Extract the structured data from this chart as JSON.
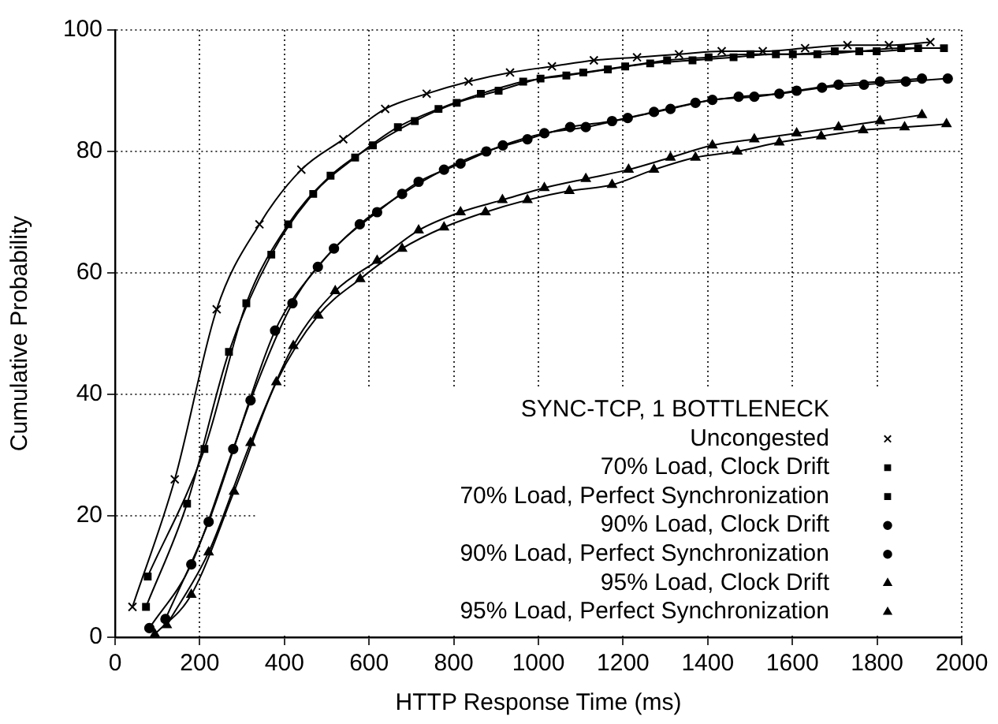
{
  "chart_data": {
    "type": "line",
    "legend_title": "SYNC-TCP, 1 BOTTLENECK",
    "xlabel": "HTTP Response Time (ms)",
    "ylabel": "Cumulative Probability",
    "xlim": [
      0,
      2000
    ],
    "xticks": [
      0,
      200,
      400,
      600,
      800,
      1000,
      1200,
      1400,
      1600,
      1800,
      2000
    ],
    "ylim": [
      0,
      100
    ],
    "yticks": [
      0,
      20,
      40,
      60,
      80,
      100
    ],
    "grid": true,
    "legend": "bottom right",
    "line_style": "solid",
    "series": [
      {
        "name": "Uncongested",
        "color": "#000000",
        "marker": "cross",
        "x": [
          41,
          141,
          240,
          341,
          440,
          539,
          638,
          736,
          835,
          933,
          1032,
          1131,
          1233,
          1332,
          1433,
          1530,
          1630,
          1730,
          1828,
          1926
        ],
        "values": [
          5,
          26,
          54,
          68,
          77,
          82,
          87,
          89.5,
          91.5,
          93,
          94,
          95,
          95.5,
          96,
          96.5,
          96.5,
          97,
          97.5,
          97.5,
          98
        ]
      },
      {
        "name": "70% Load, Clock Drift",
        "color": "#000000",
        "marker": "square",
        "x": [
          73,
          170,
          269,
          369,
          468,
          567,
          668,
          764,
          864,
          964,
          1066,
          1164,
          1264,
          1364,
          1461,
          1561,
          1659,
          1758,
          1857,
          1958
        ],
        "values": [
          5,
          22,
          47,
          63,
          73,
          79,
          84,
          87,
          89.5,
          91.5,
          92.5,
          93.5,
          94.5,
          95,
          95.5,
          96,
          96,
          96.5,
          97,
          97
        ]
      },
      {
        "name": "70% Load, Perfect Synchronization",
        "color": "#000000",
        "marker": "square",
        "x": [
          77,
          211,
          310,
          409,
          509,
          609,
          708,
          807,
          906,
          1005,
          1106,
          1205,
          1304,
          1402,
          1501,
          1601,
          1700,
          1799,
          1897
        ],
        "values": [
          10,
          31,
          55,
          68,
          76,
          81,
          85,
          88,
          90,
          92,
          93,
          94,
          95,
          95.5,
          96,
          96,
          96.5,
          96.5,
          97
        ]
      },
      {
        "name": "90% Load, Clock Drift",
        "color": "#000000",
        "marker": "circle",
        "x": [
          81,
          180,
          279,
          378,
          479,
          578,
          678,
          777,
          877,
          974,
          1075,
          1174,
          1273,
          1371,
          1473,
          1569,
          1670,
          1769,
          1868,
          1967
        ],
        "values": [
          1.5,
          12,
          31,
          50.5,
          61,
          68,
          73,
          77,
          80,
          82,
          84,
          85,
          86.5,
          88,
          89,
          89.5,
          90.5,
          91,
          91.5,
          92
        ]
      },
      {
        "name": "90% Load, Perfect Synchronization",
        "color": "#000000",
        "marker": "circle",
        "x": [
          119,
          221,
          320,
          419,
          517,
          619,
          717,
          816,
          916,
          1014,
          1112,
          1211,
          1312,
          1411,
          1510,
          1610,
          1709,
          1807,
          1906
        ],
        "values": [
          3,
          19,
          39,
          55,
          64,
          70,
          75,
          78,
          81,
          83,
          84,
          85.5,
          87,
          88.5,
          89,
          90,
          91,
          91.5,
          92
        ]
      },
      {
        "name": "95% Load, Clock Drift",
        "color": "#000000",
        "marker": "triangle",
        "x": [
          94,
          180,
          281,
          381,
          480,
          579,
          678,
          777,
          875,
          974,
          1073,
          1174,
          1273,
          1371,
          1470,
          1569,
          1668,
          1767,
          1865,
          1964
        ],
        "values": [
          0.5,
          7,
          24,
          42,
          53,
          59,
          64,
          67.5,
          70,
          72,
          73.5,
          74.5,
          77,
          79,
          80,
          81.5,
          82.5,
          83.5,
          84,
          84.5
        ]
      },
      {
        "name": "95% Load, Perfect Synchronization",
        "color": "#000000",
        "marker": "triangle",
        "x": [
          122,
          221,
          320,
          421,
          520,
          619,
          717,
          816,
          915,
          1014,
          1112,
          1213,
          1312,
          1411,
          1510,
          1610,
          1709,
          1807,
          1906
        ],
        "values": [
          2,
          14,
          32,
          48,
          57,
          62,
          67,
          70,
          72,
          74,
          75.5,
          77,
          79,
          81,
          82,
          83,
          84,
          85,
          86
        ]
      }
    ]
  }
}
